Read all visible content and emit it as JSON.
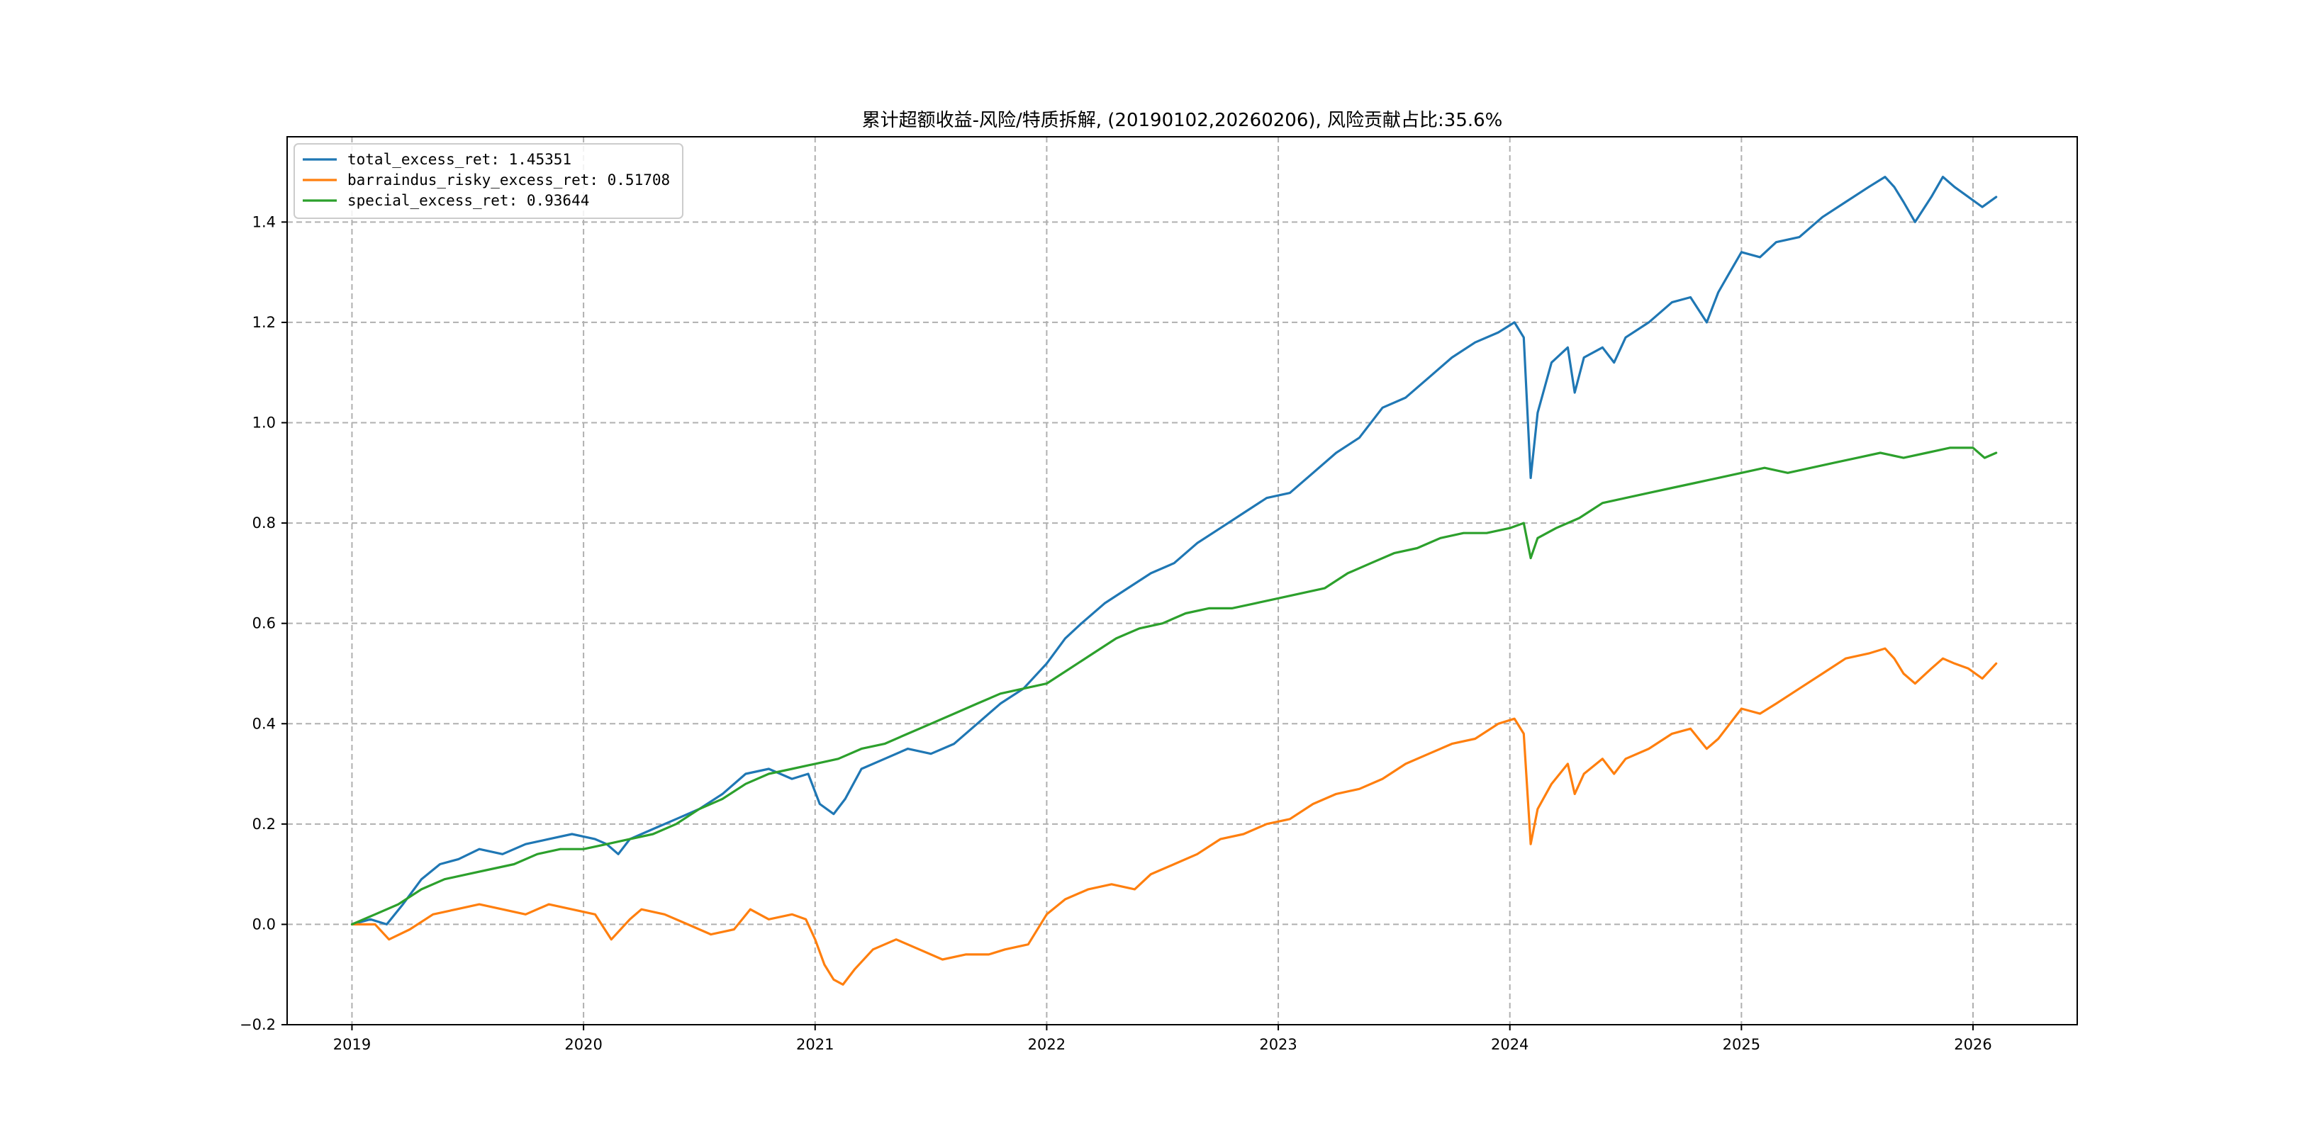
{
  "chart_data": {
    "type": "line",
    "title": "累计超额收益-风险/特质拆解, (20190102,20260206), 风险贡献占比:35.6%",
    "xlabel": "",
    "ylabel": "",
    "xlim": [
      2018.72,
      2026.45
    ],
    "ylim": [
      -0.2,
      1.57
    ],
    "grid": true,
    "legend_position": "top-left",
    "x_ticks": [
      2019,
      2020,
      2021,
      2022,
      2023,
      2024,
      2025,
      2026
    ],
    "x_tick_labels": [
      "2019",
      "2020",
      "2021",
      "2022",
      "2023",
      "2024",
      "2025",
      "2026"
    ],
    "y_ticks": [
      -0.2,
      0.0,
      0.2,
      0.4,
      0.6,
      0.8,
      1.0,
      1.2,
      1.4
    ],
    "y_tick_labels": [
      "−0.2",
      "0.0",
      "0.2",
      "0.4",
      "0.6",
      "0.8",
      "1.0",
      "1.2",
      "1.4"
    ],
    "series": [
      {
        "name": "total_excess_ret",
        "legend_label": "total_excess_ret: 1.45351",
        "color": "#1f77b4",
        "points": [
          [
            2019.0,
            0.0
          ],
          [
            2019.08,
            0.01
          ],
          [
            2019.15,
            0.0
          ],
          [
            2019.22,
            0.04
          ],
          [
            2019.3,
            0.09
          ],
          [
            2019.38,
            0.12
          ],
          [
            2019.46,
            0.13
          ],
          [
            2019.55,
            0.15
          ],
          [
            2019.65,
            0.14
          ],
          [
            2019.75,
            0.16
          ],
          [
            2019.85,
            0.17
          ],
          [
            2019.95,
            0.18
          ],
          [
            2020.05,
            0.17
          ],
          [
            2020.1,
            0.16
          ],
          [
            2020.15,
            0.14
          ],
          [
            2020.2,
            0.17
          ],
          [
            2020.3,
            0.19
          ],
          [
            2020.4,
            0.21
          ],
          [
            2020.5,
            0.23
          ],
          [
            2020.6,
            0.26
          ],
          [
            2020.7,
            0.3
          ],
          [
            2020.8,
            0.31
          ],
          [
            2020.9,
            0.29
          ],
          [
            2020.97,
            0.3
          ],
          [
            2021.02,
            0.24
          ],
          [
            2021.08,
            0.22
          ],
          [
            2021.13,
            0.25
          ],
          [
            2021.2,
            0.31
          ],
          [
            2021.3,
            0.33
          ],
          [
            2021.4,
            0.35
          ],
          [
            2021.5,
            0.34
          ],
          [
            2021.6,
            0.36
          ],
          [
            2021.7,
            0.4
          ],
          [
            2021.8,
            0.44
          ],
          [
            2021.9,
            0.47
          ],
          [
            2022.0,
            0.52
          ],
          [
            2022.08,
            0.57
          ],
          [
            2022.15,
            0.6
          ],
          [
            2022.25,
            0.64
          ],
          [
            2022.35,
            0.67
          ],
          [
            2022.45,
            0.7
          ],
          [
            2022.55,
            0.72
          ],
          [
            2022.65,
            0.76
          ],
          [
            2022.75,
            0.79
          ],
          [
            2022.85,
            0.82
          ],
          [
            2022.95,
            0.85
          ],
          [
            2023.05,
            0.86
          ],
          [
            2023.15,
            0.9
          ],
          [
            2023.25,
            0.94
          ],
          [
            2023.35,
            0.97
          ],
          [
            2023.45,
            1.03
          ],
          [
            2023.55,
            1.05
          ],
          [
            2023.65,
            1.09
          ],
          [
            2023.75,
            1.13
          ],
          [
            2023.85,
            1.16
          ],
          [
            2023.95,
            1.18
          ],
          [
            2024.02,
            1.2
          ],
          [
            2024.06,
            1.17
          ],
          [
            2024.09,
            0.89
          ],
          [
            2024.12,
            1.02
          ],
          [
            2024.18,
            1.12
          ],
          [
            2024.25,
            1.15
          ],
          [
            2024.28,
            1.06
          ],
          [
            2024.32,
            1.13
          ],
          [
            2024.4,
            1.15
          ],
          [
            2024.45,
            1.12
          ],
          [
            2024.5,
            1.17
          ],
          [
            2024.6,
            1.2
          ],
          [
            2024.7,
            1.24
          ],
          [
            2024.78,
            1.25
          ],
          [
            2024.85,
            1.2
          ],
          [
            2024.9,
            1.26
          ],
          [
            2024.95,
            1.3
          ],
          [
            2025.0,
            1.34
          ],
          [
            2025.08,
            1.33
          ],
          [
            2025.15,
            1.36
          ],
          [
            2025.25,
            1.37
          ],
          [
            2025.35,
            1.41
          ],
          [
            2025.45,
            1.44
          ],
          [
            2025.55,
            1.47
          ],
          [
            2025.62,
            1.49
          ],
          [
            2025.66,
            1.47
          ],
          [
            2025.7,
            1.44
          ],
          [
            2025.75,
            1.4
          ],
          [
            2025.82,
            1.45
          ],
          [
            2025.87,
            1.49
          ],
          [
            2025.92,
            1.47
          ],
          [
            2025.98,
            1.45
          ],
          [
            2026.04,
            1.43
          ],
          [
            2026.1,
            1.45
          ]
        ]
      },
      {
        "name": "barraindus_risky_excess_ret",
        "legend_label": "barraindus_risky_excess_ret: 0.51708",
        "color": "#ff7f0e",
        "points": [
          [
            2019.0,
            0.0
          ],
          [
            2019.1,
            0.0
          ],
          [
            2019.16,
            -0.03
          ],
          [
            2019.25,
            -0.01
          ],
          [
            2019.35,
            0.02
          ],
          [
            2019.45,
            0.03
          ],
          [
            2019.55,
            0.04
          ],
          [
            2019.65,
            0.03
          ],
          [
            2019.75,
            0.02
          ],
          [
            2019.85,
            0.04
          ],
          [
            2019.95,
            0.03
          ],
          [
            2020.05,
            0.02
          ],
          [
            2020.12,
            -0.03
          ],
          [
            2020.2,
            0.01
          ],
          [
            2020.25,
            0.03
          ],
          [
            2020.35,
            0.02
          ],
          [
            2020.45,
            0.0
          ],
          [
            2020.55,
            -0.02
          ],
          [
            2020.65,
            -0.01
          ],
          [
            2020.72,
            0.03
          ],
          [
            2020.8,
            0.01
          ],
          [
            2020.9,
            0.02
          ],
          [
            2020.96,
            0.01
          ],
          [
            2021.0,
            -0.03
          ],
          [
            2021.04,
            -0.08
          ],
          [
            2021.08,
            -0.11
          ],
          [
            2021.12,
            -0.12
          ],
          [
            2021.17,
            -0.09
          ],
          [
            2021.25,
            -0.05
          ],
          [
            2021.35,
            -0.03
          ],
          [
            2021.45,
            -0.05
          ],
          [
            2021.55,
            -0.07
          ],
          [
            2021.65,
            -0.06
          ],
          [
            2021.75,
            -0.06
          ],
          [
            2021.82,
            -0.05
          ],
          [
            2021.92,
            -0.04
          ],
          [
            2022.0,
            0.02
          ],
          [
            2022.08,
            0.05
          ],
          [
            2022.18,
            0.07
          ],
          [
            2022.28,
            0.08
          ],
          [
            2022.38,
            0.07
          ],
          [
            2022.45,
            0.1
          ],
          [
            2022.55,
            0.12
          ],
          [
            2022.65,
            0.14
          ],
          [
            2022.75,
            0.17
          ],
          [
            2022.85,
            0.18
          ],
          [
            2022.95,
            0.2
          ],
          [
            2023.05,
            0.21
          ],
          [
            2023.15,
            0.24
          ],
          [
            2023.25,
            0.26
          ],
          [
            2023.35,
            0.27
          ],
          [
            2023.45,
            0.29
          ],
          [
            2023.55,
            0.32
          ],
          [
            2023.65,
            0.34
          ],
          [
            2023.75,
            0.36
          ],
          [
            2023.85,
            0.37
          ],
          [
            2023.95,
            0.4
          ],
          [
            2024.02,
            0.41
          ],
          [
            2024.06,
            0.38
          ],
          [
            2024.09,
            0.16
          ],
          [
            2024.12,
            0.23
          ],
          [
            2024.18,
            0.28
          ],
          [
            2024.25,
            0.32
          ],
          [
            2024.28,
            0.26
          ],
          [
            2024.32,
            0.3
          ],
          [
            2024.4,
            0.33
          ],
          [
            2024.45,
            0.3
          ],
          [
            2024.5,
            0.33
          ],
          [
            2024.6,
            0.35
          ],
          [
            2024.7,
            0.38
          ],
          [
            2024.78,
            0.39
          ],
          [
            2024.85,
            0.35
          ],
          [
            2024.9,
            0.37
          ],
          [
            2024.95,
            0.4
          ],
          [
            2025.0,
            0.43
          ],
          [
            2025.08,
            0.42
          ],
          [
            2025.15,
            0.44
          ],
          [
            2025.25,
            0.47
          ],
          [
            2025.35,
            0.5
          ],
          [
            2025.45,
            0.53
          ],
          [
            2025.55,
            0.54
          ],
          [
            2025.62,
            0.55
          ],
          [
            2025.66,
            0.53
          ],
          [
            2025.7,
            0.5
          ],
          [
            2025.75,
            0.48
          ],
          [
            2025.82,
            0.51
          ],
          [
            2025.87,
            0.53
          ],
          [
            2025.92,
            0.52
          ],
          [
            2025.98,
            0.51
          ],
          [
            2026.04,
            0.49
          ],
          [
            2026.1,
            0.52
          ]
        ]
      },
      {
        "name": "special_excess_ret",
        "legend_label": "special_excess_ret: 0.93644",
        "color": "#2ca02c",
        "points": [
          [
            2019.0,
            0.0
          ],
          [
            2019.1,
            0.02
          ],
          [
            2019.2,
            0.04
          ],
          [
            2019.3,
            0.07
          ],
          [
            2019.4,
            0.09
          ],
          [
            2019.5,
            0.1
          ],
          [
            2019.6,
            0.11
          ],
          [
            2019.7,
            0.12
          ],
          [
            2019.8,
            0.14
          ],
          [
            2019.9,
            0.15
          ],
          [
            2020.0,
            0.15
          ],
          [
            2020.1,
            0.16
          ],
          [
            2020.2,
            0.17
          ],
          [
            2020.3,
            0.18
          ],
          [
            2020.4,
            0.2
          ],
          [
            2020.5,
            0.23
          ],
          [
            2020.6,
            0.25
          ],
          [
            2020.7,
            0.28
          ],
          [
            2020.8,
            0.3
          ],
          [
            2020.9,
            0.31
          ],
          [
            2021.0,
            0.32
          ],
          [
            2021.1,
            0.33
          ],
          [
            2021.2,
            0.35
          ],
          [
            2021.3,
            0.36
          ],
          [
            2021.4,
            0.38
          ],
          [
            2021.5,
            0.4
          ],
          [
            2021.6,
            0.42
          ],
          [
            2021.7,
            0.44
          ],
          [
            2021.8,
            0.46
          ],
          [
            2021.9,
            0.47
          ],
          [
            2022.0,
            0.48
          ],
          [
            2022.1,
            0.51
          ],
          [
            2022.2,
            0.54
          ],
          [
            2022.3,
            0.57
          ],
          [
            2022.4,
            0.59
          ],
          [
            2022.5,
            0.6
          ],
          [
            2022.6,
            0.62
          ],
          [
            2022.7,
            0.63
          ],
          [
            2022.8,
            0.63
          ],
          [
            2022.9,
            0.64
          ],
          [
            2023.0,
            0.65
          ],
          [
            2023.1,
            0.66
          ],
          [
            2023.2,
            0.67
          ],
          [
            2023.3,
            0.7
          ],
          [
            2023.4,
            0.72
          ],
          [
            2023.5,
            0.74
          ],
          [
            2023.6,
            0.75
          ],
          [
            2023.7,
            0.77
          ],
          [
            2023.8,
            0.78
          ],
          [
            2023.9,
            0.78
          ],
          [
            2024.0,
            0.79
          ],
          [
            2024.06,
            0.8
          ],
          [
            2024.09,
            0.73
          ],
          [
            2024.12,
            0.77
          ],
          [
            2024.2,
            0.79
          ],
          [
            2024.3,
            0.81
          ],
          [
            2024.4,
            0.84
          ],
          [
            2024.5,
            0.85
          ],
          [
            2024.6,
            0.86
          ],
          [
            2024.7,
            0.87
          ],
          [
            2024.8,
            0.88
          ],
          [
            2024.9,
            0.89
          ],
          [
            2025.0,
            0.9
          ],
          [
            2025.1,
            0.91
          ],
          [
            2025.2,
            0.9
          ],
          [
            2025.3,
            0.91
          ],
          [
            2025.4,
            0.92
          ],
          [
            2025.5,
            0.93
          ],
          [
            2025.6,
            0.94
          ],
          [
            2025.7,
            0.93
          ],
          [
            2025.8,
            0.94
          ],
          [
            2025.9,
            0.95
          ],
          [
            2026.0,
            0.95
          ],
          [
            2026.05,
            0.93
          ],
          [
            2026.1,
            0.94
          ]
        ]
      }
    ]
  }
}
